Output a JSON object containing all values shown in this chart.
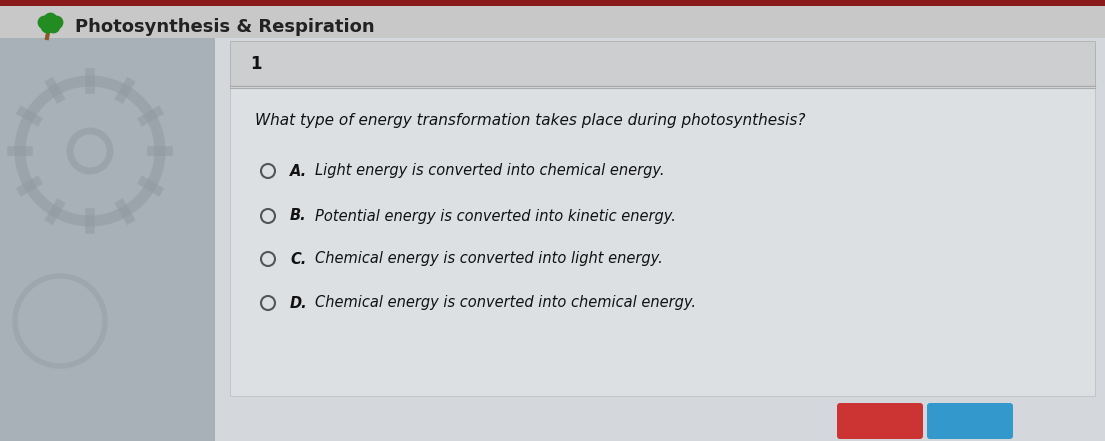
{
  "title": "Photosynthesis & Respiration",
  "question_number": "1",
  "question_text": "What type of energy transformation takes place during photosynthesis?",
  "options": [
    {
      "label": "A.",
      "text": "Light energy is converted into chemical energy."
    },
    {
      "label": "B.",
      "text": "Potential energy is converted into kinetic energy."
    },
    {
      "label": "C.",
      "text": "Chemical energy is converted into light energy."
    },
    {
      "label": "D.",
      "text": "Chemical energy is converted into chemical energy."
    }
  ],
  "header_bg": "#8B1A1A",
  "header_text_color": "#222222",
  "header_bg_light": "#c0c0c0",
  "main_bg": "#b0b8c0",
  "content_bg": "#d4d8dc",
  "inner_bg": "#dde0e3",
  "question_number_color": "#111111",
  "question_text_color": "#111111",
  "option_text_color": "#111111",
  "circle_color": "#555555",
  "title_fontsize": 13,
  "question_fontsize": 11,
  "option_fontsize": 10.5,
  "number_fontsize": 12
}
